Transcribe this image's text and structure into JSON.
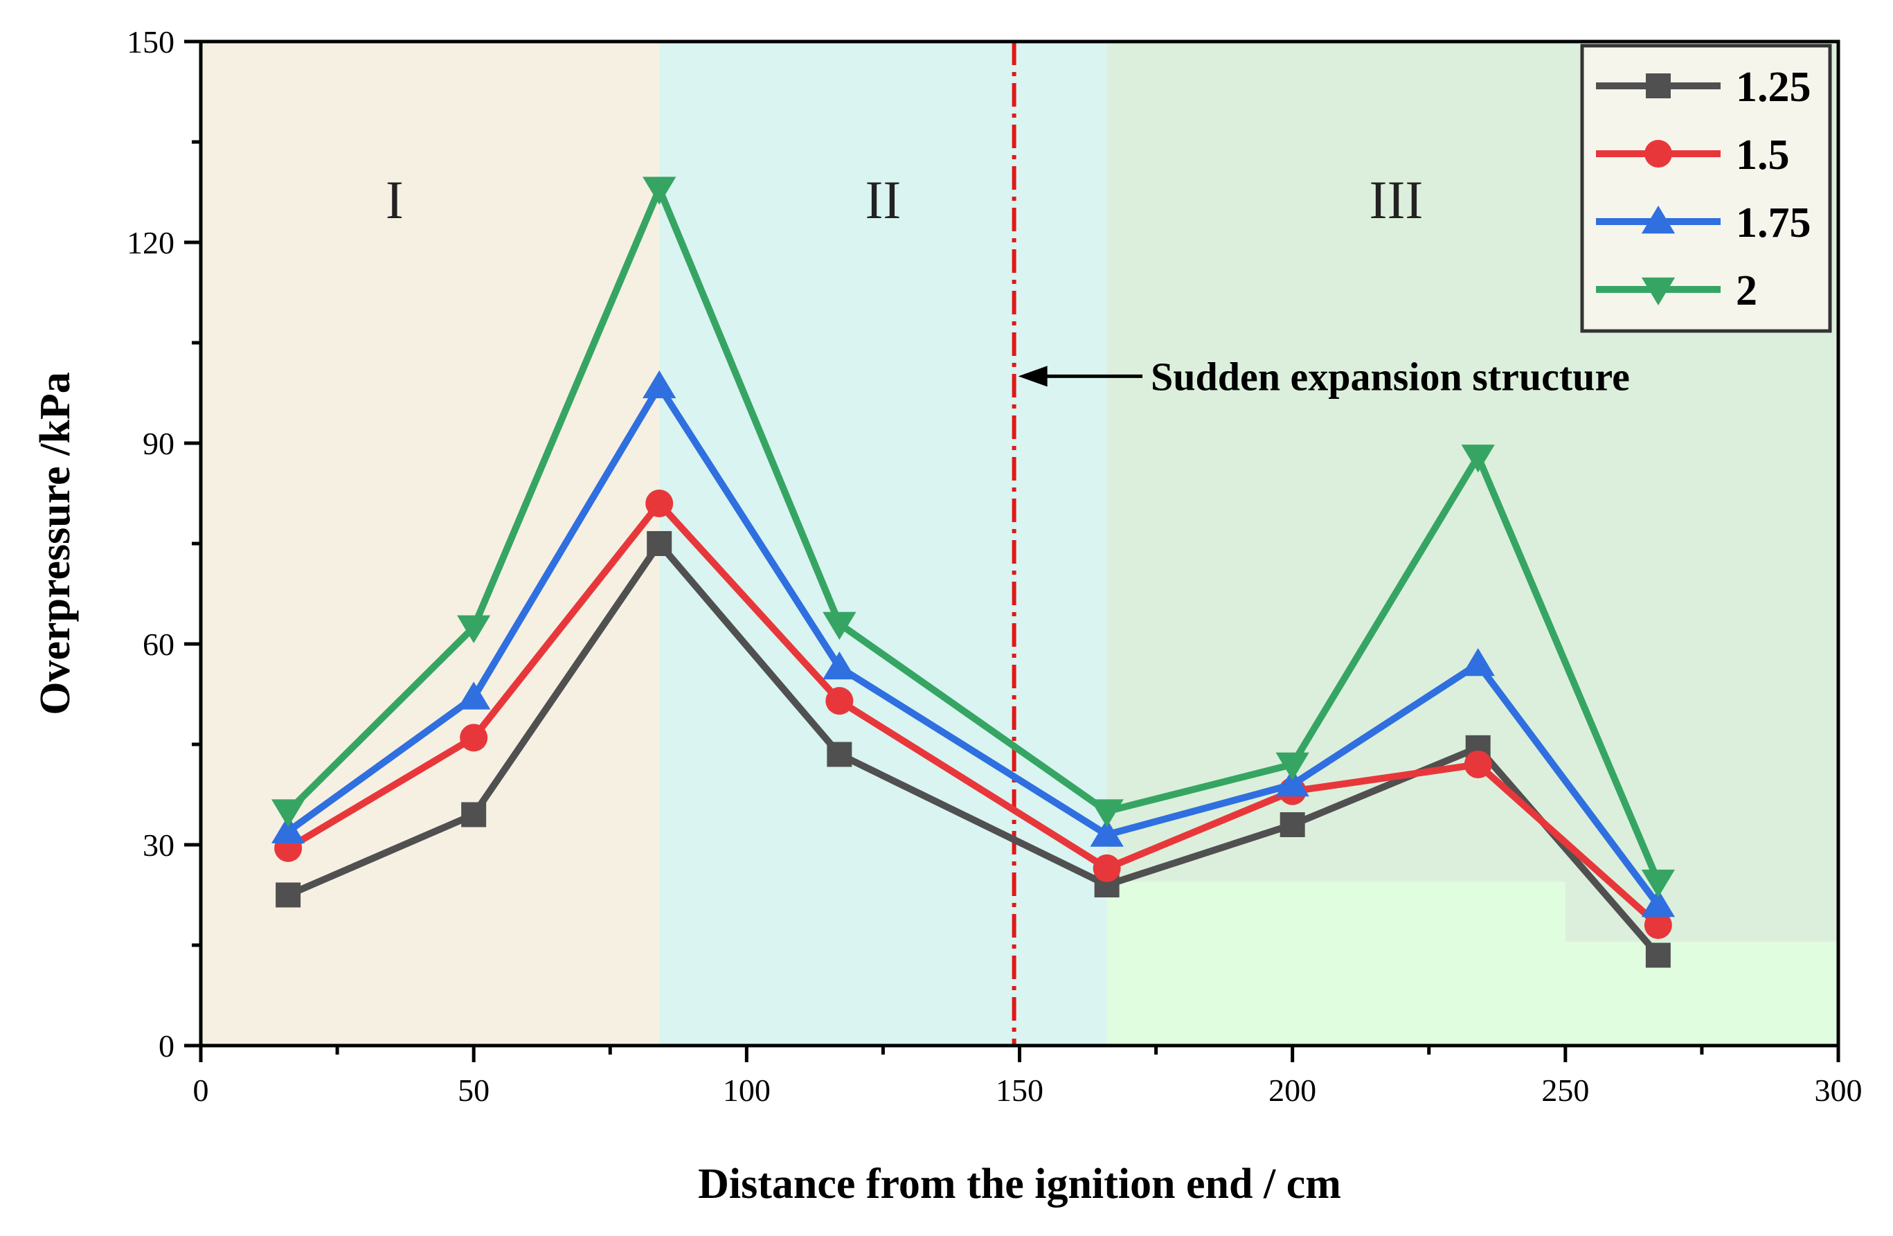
{
  "chart_data": {
    "type": "line",
    "title": "",
    "xlabel": "Distance from the ignition end / cm",
    "ylabel": "Overpressure /kPa",
    "xlim": [
      0,
      300
    ],
    "ylim": [
      0,
      150
    ],
    "xticks": [
      0,
      50,
      100,
      150,
      200,
      250,
      300
    ],
    "yticks": [
      0,
      30,
      60,
      90,
      120,
      150
    ],
    "x": [
      16,
      50,
      84,
      117,
      166,
      200,
      234,
      267
    ],
    "series": [
      {
        "name": "1.25",
        "color": "#505050",
        "marker": "square",
        "values": [
          22.5,
          34.5,
          75,
          43.5,
          24,
          33,
          44.5,
          13.5
        ]
      },
      {
        "name": "1.5",
        "color": "#e8373b",
        "marker": "circle",
        "values": [
          29.5,
          46,
          81,
          51.5,
          26.5,
          38,
          42,
          18
        ]
      },
      {
        "name": "1.75",
        "color": "#2f6fe0",
        "marker": "triangle-up",
        "values": [
          32,
          52,
          98.5,
          56.5,
          31.5,
          39,
          57,
          21
        ]
      },
      {
        "name": "2",
        "color": "#36a563",
        "marker": "triangle-down",
        "values": [
          35,
          62.5,
          128,
          63,
          35,
          42,
          88,
          24.5
        ]
      }
    ],
    "regions": [
      {
        "label": "I",
        "x_start": 0,
        "x_end": 84,
        "color": "#f6f0e3"
      },
      {
        "label": "II",
        "x_start": 84,
        "x_end": 166,
        "color": "#d9f4f1"
      },
      {
        "label": "III",
        "x_start": 166,
        "x_end": 300,
        "color": "#dcefdc"
      }
    ],
    "lower_band_color": "#e1fddf",
    "annotation": {
      "text": "Sudden expansion structure",
      "x": 149,
      "y": 100,
      "line_color": "#e01818"
    },
    "legend_position": "top-right"
  }
}
